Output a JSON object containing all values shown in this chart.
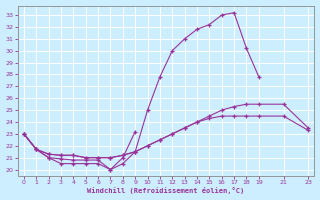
{
  "background_color": "#cceeff",
  "grid_color": "#aaddcc",
  "line_color": "#993399",
  "xlabel": "Windchill (Refroidissement éolien,°C)",
  "xlim": [
    -0.5,
    23.5
  ],
  "ylim": [
    19.5,
    33.8
  ],
  "yticks": [
    20,
    21,
    22,
    23,
    24,
    25,
    26,
    27,
    28,
    29,
    30,
    31,
    32,
    33
  ],
  "xticks": [
    0,
    1,
    2,
    3,
    4,
    5,
    6,
    7,
    8,
    9,
    10,
    11,
    12,
    13,
    14,
    15,
    16,
    17,
    18,
    19,
    21,
    23
  ],
  "series_x": [
    [
      0,
      1,
      2,
      3,
      4,
      5,
      6,
      7,
      8,
      9,
      10,
      11,
      12,
      13,
      14,
      15,
      16,
      17,
      18,
      19
    ],
    [
      0,
      1,
      2,
      3,
      4,
      5,
      6,
      7,
      8,
      9
    ],
    [
      0,
      1,
      2,
      3,
      4,
      5,
      6,
      7,
      8,
      9,
      10,
      11,
      12,
      13,
      14,
      15,
      16,
      17,
      18,
      19,
      21,
      23
    ],
    [
      0,
      1,
      2,
      3,
      4,
      5,
      6,
      7,
      8,
      9,
      10,
      11,
      12,
      13,
      14,
      15,
      16,
      17,
      18,
      19,
      21,
      23
    ]
  ],
  "series_y": [
    [
      23.0,
      21.7,
      21.0,
      20.5,
      20.5,
      20.5,
      20.5,
      20.0,
      20.5,
      21.5,
      25.0,
      27.8,
      30.0,
      31.0,
      31.8,
      32.2,
      33.0,
      33.2,
      30.2,
      27.8
    ],
    [
      23.0,
      21.7,
      21.0,
      20.9,
      20.8,
      20.8,
      20.8,
      20.0,
      21.0,
      23.2
    ],
    [
      23.0,
      21.7,
      21.3,
      21.2,
      21.2,
      21.0,
      21.0,
      21.0,
      21.2,
      21.5,
      22.0,
      22.5,
      23.0,
      23.5,
      24.0,
      24.5,
      25.0,
      25.3,
      25.5,
      25.5,
      25.5,
      23.5
    ],
    [
      23.0,
      21.7,
      21.3,
      21.2,
      21.2,
      21.0,
      21.0,
      21.0,
      21.2,
      21.5,
      22.0,
      22.5,
      23.0,
      23.5,
      24.0,
      24.3,
      24.5,
      24.5,
      24.5,
      24.5,
      24.5,
      23.3
    ]
  ]
}
